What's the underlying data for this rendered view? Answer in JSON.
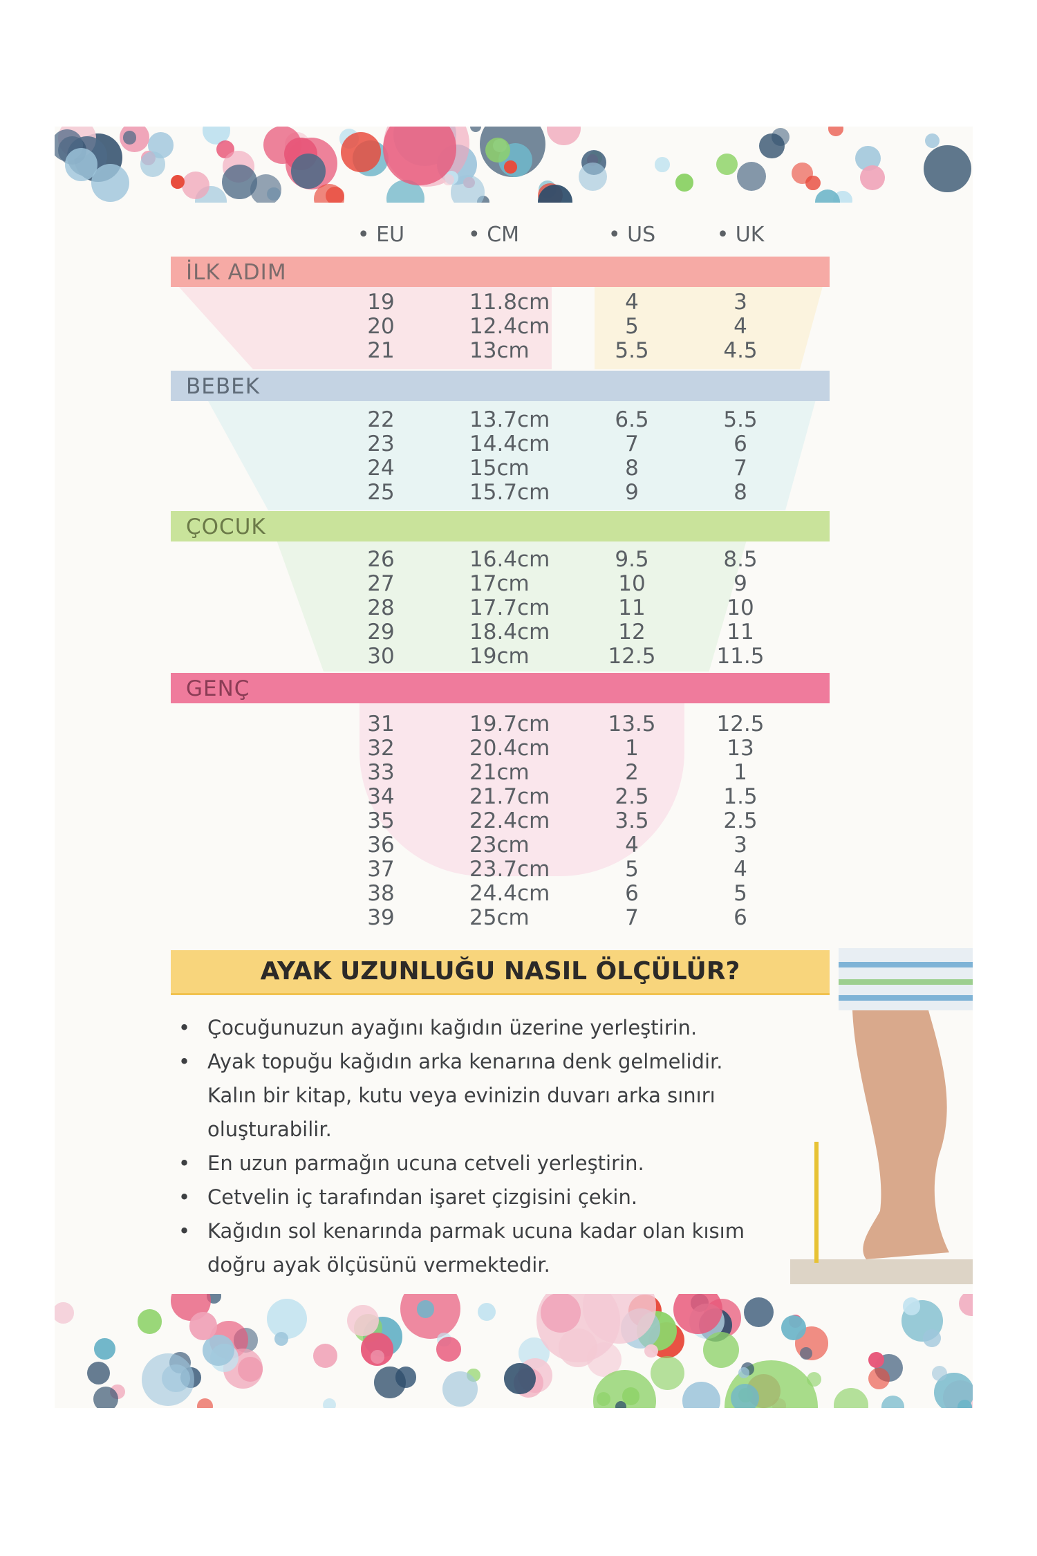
{
  "columns": [
    "EU",
    "CM",
    "US",
    "UK"
  ],
  "sections": [
    {
      "label": "İLK ADIM",
      "color": "#f6aaa5",
      "text_color": "#7b6b6b",
      "rows": [
        [
          "19",
          "11.8cm",
          "4",
          "3"
        ],
        [
          "20",
          "12.4cm",
          "5",
          "4"
        ],
        [
          "21",
          "13cm",
          "5.5",
          "4.5"
        ]
      ]
    },
    {
      "label": "BEBEK",
      "color": "#c4d3e3",
      "text_color": "#5f6b78",
      "rows": [
        [
          "22",
          "13.7cm",
          "6.5",
          "5.5"
        ],
        [
          "23",
          "14.4cm",
          "7",
          "6"
        ],
        [
          "24",
          "15cm",
          "8",
          "7"
        ],
        [
          "25",
          "15.7cm",
          "9",
          "8"
        ]
      ]
    },
    {
      "label": "ÇOCUK",
      "color": "#c9e39b",
      "text_color": "#6b7a48",
      "rows": [
        [
          "26",
          "16.4cm",
          "9.5",
          "8.5"
        ],
        [
          "27",
          "17cm",
          "10",
          "9"
        ],
        [
          "28",
          "17.7cm",
          "11",
          "10"
        ],
        [
          "29",
          "18.4cm",
          "12",
          "11"
        ],
        [
          "30",
          "19cm",
          "12.5",
          "11.5"
        ]
      ]
    },
    {
      "label": "GENÇ",
      "color": "#ef7b9c",
      "text_color": "#8a3c55",
      "rows": [
        [
          "31",
          "19.7cm",
          "13.5",
          "12.5"
        ],
        [
          "32",
          "20.4cm",
          "1",
          "13"
        ],
        [
          "33",
          "21cm",
          "2",
          "1"
        ],
        [
          "34",
          "21.7cm",
          "2.5",
          "1.5"
        ],
        [
          "35",
          "22.4cm",
          "3.5",
          "2.5"
        ],
        [
          "36",
          "23cm",
          "4",
          "3"
        ],
        [
          "37",
          "23.7cm",
          "5",
          "4"
        ],
        [
          "38",
          "24.4cm",
          "6",
          "5"
        ],
        [
          "39",
          "25cm",
          "7",
          "6"
        ]
      ]
    }
  ],
  "howto": {
    "title": "AYAK UZUNLUĞU NASIL ÖLÇÜLÜR?",
    "lines": [
      {
        "bullet": true,
        "text": "Çocuğunuzun ayağını kağıdın üzerine yerleştirin."
      },
      {
        "bullet": true,
        "text": "Ayak topuğu kağıdın arka kenarına denk gelmelidir."
      },
      {
        "bullet": false,
        "text": "Kalın bir kitap, kutu veya evinizin duvarı arka sınırı"
      },
      {
        "bullet": false,
        "text": "oluşturabilir."
      },
      {
        "bullet": true,
        "text": "En uzun parmağın ucuna cetveli yerleştirin."
      },
      {
        "bullet": true,
        "text": "Cetvelin iç tarafından işaret çizgisini çekin."
      },
      {
        "bullet": true,
        "text": "Kağıdın sol kenarında parmak ucuna kadar olan kısım"
      },
      {
        "bullet": false,
        "text": "doğru ayak ölçüsünü vermektedir."
      }
    ]
  },
  "dot_colors": [
    "#e8587a",
    "#4e6a86",
    "#8fd36a",
    "#f0a3b8",
    "#9fc6dc",
    "#e84b3c",
    "#2e4d6b",
    "#f4c9d4",
    "#6fb6c9",
    "#c2e3f0"
  ]
}
